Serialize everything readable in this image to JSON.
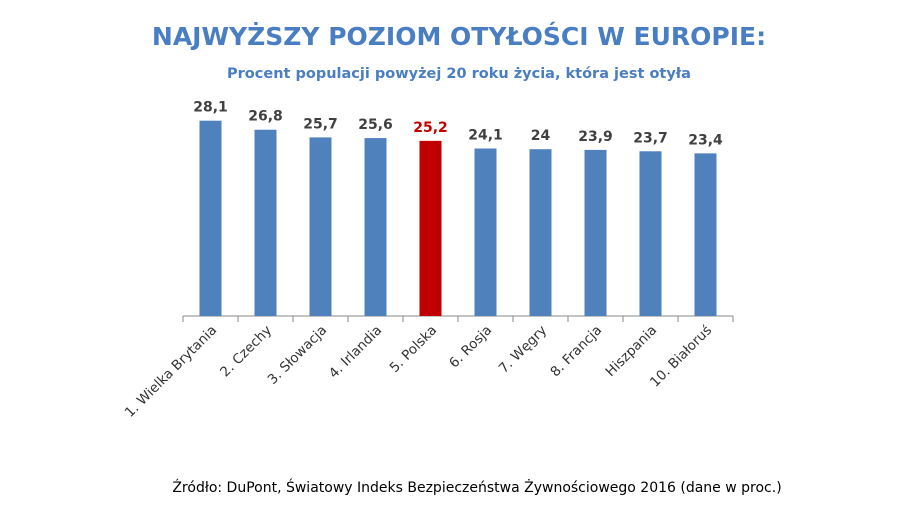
{
  "chart_data": {
    "type": "bar",
    "title": "NAJWYŻSZY POZIOM OTYŁOŚCI W EUROPIE:",
    "subtitle": "Procent populacji powyżej 20 roku życia, która jest otyła",
    "categories": [
      "1. Wielka Brytania",
      "2. Czechy",
      "3. Słowacja",
      "4. Irlandia",
      "5. Polska",
      "6. Rosja",
      "7. Węgry",
      "8. Francja",
      "Hiszpania",
      "10. Białoruś"
    ],
    "values": [
      28.1,
      26.8,
      25.7,
      25.6,
      25.2,
      24.1,
      24,
      23.9,
      23.7,
      23.4
    ],
    "value_labels": [
      "28,1",
      "26,8",
      "25,7",
      "25,6",
      "25,2",
      "24,1",
      "24",
      "23,9",
      "23,7",
      "23,4"
    ],
    "colors": [
      "#4f81bd",
      "#4f81bd",
      "#4f81bd",
      "#4f81bd",
      "#c00000",
      "#4f81bd",
      "#4f81bd",
      "#4f81bd",
      "#4f81bd",
      "#4f81bd"
    ],
    "value_label_colors": [
      "#404040",
      "#404040",
      "#404040",
      "#404040",
      "#c00000",
      "#404040",
      "#404040",
      "#404040",
      "#404040",
      "#404040"
    ],
    "ylim": [
      0,
      30
    ],
    "source": "Źródło: DuPont, Światowy Indeks Bezpieczeństwa Żywnościowego 2016 (dane w proc.)"
  }
}
